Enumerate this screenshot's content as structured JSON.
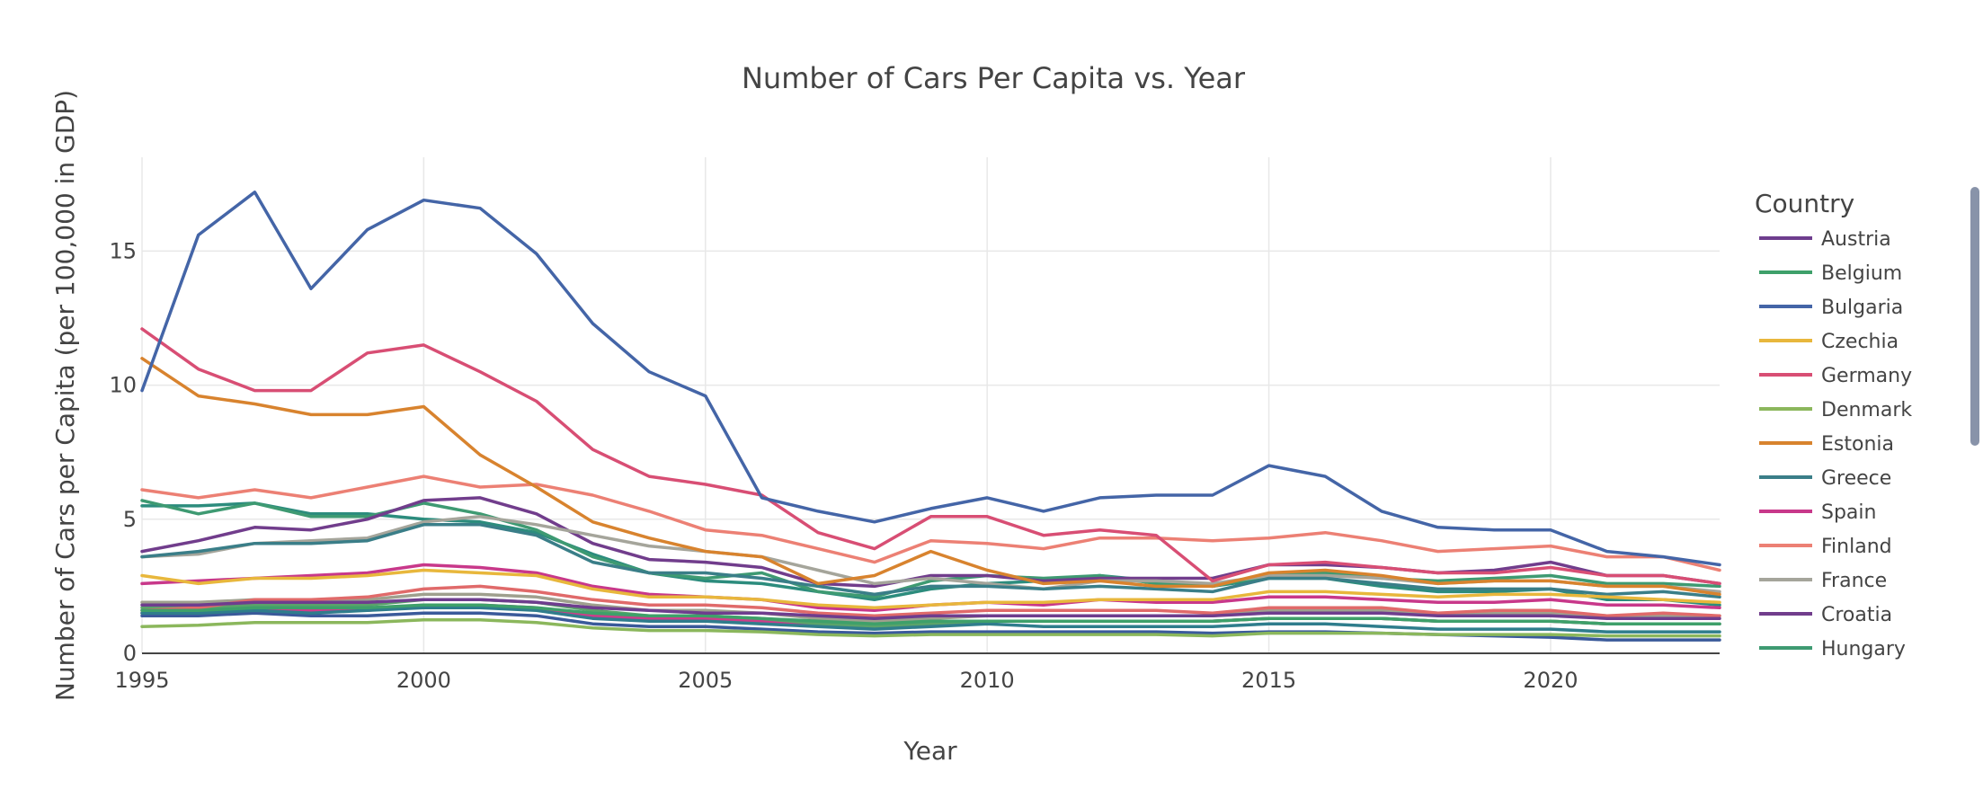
{
  "chart_data": {
    "type": "line",
    "title": "Number of Cars Per Capita vs. Year",
    "xlabel": "Year",
    "ylabel": "Number of Cars per Capita (per 100,000 in GDP)",
    "xlim": [
      1995,
      2023
    ],
    "ylim": [
      0,
      18.5
    ],
    "x_ticks": [
      1995,
      2000,
      2005,
      2010,
      2015,
      2020
    ],
    "y_ticks": [
      0,
      5,
      10,
      15
    ],
    "grid": true,
    "legend_title": "Country",
    "legend_position": "right",
    "x": [
      1995,
      1996,
      1997,
      1998,
      1999,
      2000,
      2001,
      2002,
      2003,
      2004,
      2005,
      2006,
      2007,
      2008,
      2009,
      2010,
      2011,
      2012,
      2013,
      2014,
      2015,
      2016,
      2017,
      2018,
      2019,
      2020,
      2021,
      2022,
      2023
    ],
    "series": [
      {
        "name": "Austria",
        "color": "#6e3d8e",
        "values": [
          1.8,
          1.8,
          1.9,
          1.9,
          1.9,
          2.0,
          2.0,
          1.9,
          1.7,
          1.6,
          1.5,
          1.5,
          1.4,
          1.3,
          1.4,
          1.4,
          1.4,
          1.4,
          1.4,
          1.4,
          1.5,
          1.5,
          1.5,
          1.4,
          1.4,
          1.4,
          1.3,
          1.3,
          1.3
        ]
      },
      {
        "name": "Belgium",
        "color": "#3ea06a",
        "values": [
          1.6,
          1.6,
          1.7,
          1.7,
          1.7,
          1.8,
          1.8,
          1.7,
          1.5,
          1.4,
          1.4,
          1.3,
          1.2,
          1.1,
          1.2,
          1.2,
          1.2,
          1.2,
          1.2,
          1.2,
          1.3,
          1.3,
          1.3,
          1.2,
          1.2,
          1.2,
          1.1,
          1.1,
          1.1
        ]
      },
      {
        "name": "Bulgaria",
        "color": "#4465a7",
        "values": [
          9.8,
          15.6,
          17.2,
          13.6,
          15.8,
          16.9,
          16.6,
          14.9,
          12.3,
          10.5,
          9.6,
          5.8,
          5.3,
          4.9,
          5.4,
          5.8,
          5.3,
          5.8,
          5.9,
          5.9,
          7.0,
          6.6,
          5.3,
          4.7,
          4.6,
          4.6,
          3.8,
          3.6,
          3.3
        ]
      },
      {
        "name": "Czechia",
        "color": "#e8b73c",
        "values": [
          2.9,
          2.6,
          2.8,
          2.8,
          2.9,
          3.1,
          3.0,
          2.9,
          2.4,
          2.1,
          2.1,
          2.0,
          1.8,
          1.7,
          1.8,
          1.9,
          1.9,
          2.0,
          2.0,
          2.0,
          2.3,
          2.3,
          2.2,
          2.1,
          2.2,
          2.2,
          2.1,
          2.0,
          1.9
        ]
      },
      {
        "name": "Germany",
        "color": "#d84e74",
        "values": [
          12.1,
          10.6,
          9.8,
          9.8,
          11.2,
          11.5,
          10.5,
          9.4,
          7.6,
          6.6,
          6.3,
          5.9,
          4.5,
          3.9,
          5.1,
          5.1,
          4.4,
          4.6,
          4.4,
          2.7,
          3.3,
          3.4,
          3.2,
          3.0,
          3.0,
          3.2,
          2.9,
          2.9,
          2.6
        ]
      },
      {
        "name": "Denmark",
        "color": "#8bb75c",
        "values": [
          1.0,
          1.05,
          1.15,
          1.15,
          1.15,
          1.25,
          1.25,
          1.15,
          0.95,
          0.85,
          0.85,
          0.8,
          0.7,
          0.65,
          0.7,
          0.7,
          0.7,
          0.7,
          0.7,
          0.65,
          0.75,
          0.75,
          0.75,
          0.7,
          0.7,
          0.7,
          0.65,
          0.65,
          0.65
        ]
      },
      {
        "name": "Estonia",
        "color": "#d8832e",
        "values": [
          11.0,
          9.6,
          9.3,
          8.9,
          8.9,
          9.2,
          7.4,
          6.2,
          4.9,
          4.3,
          3.8,
          3.6,
          2.6,
          2.9,
          3.8,
          3.1,
          2.6,
          2.7,
          2.5,
          2.5,
          3.0,
          3.1,
          2.9,
          2.6,
          2.7,
          2.7,
          2.5,
          2.5,
          2.2
        ]
      },
      {
        "name": "Greece",
        "color": "#3a7e88",
        "values": [
          3.6,
          3.8,
          4.1,
          4.1,
          4.2,
          4.8,
          4.8,
          4.4,
          3.4,
          3.0,
          3.0,
          2.8,
          2.5,
          2.2,
          2.5,
          2.5,
          2.4,
          2.5,
          2.4,
          2.3,
          2.8,
          2.8,
          2.6,
          2.4,
          2.4,
          2.4,
          2.2,
          2.3,
          2.1
        ]
      },
      {
        "name": "Spain",
        "color": "#c8388a",
        "values": [
          2.6,
          2.7,
          2.8,
          2.9,
          3.0,
          3.3,
          3.2,
          3.0,
          2.5,
          2.2,
          2.1,
          2.0,
          1.7,
          1.6,
          1.8,
          1.9,
          1.8,
          2.0,
          1.9,
          1.9,
          2.1,
          2.1,
          2.0,
          1.9,
          1.9,
          2.0,
          1.8,
          1.8,
          1.7
        ]
      },
      {
        "name": "Finland",
        "color": "#ec8074",
        "values": [
          6.1,
          5.8,
          6.1,
          5.8,
          6.2,
          6.6,
          6.2,
          6.3,
          5.9,
          5.3,
          4.6,
          4.4,
          3.9,
          3.4,
          4.2,
          4.1,
          3.9,
          4.3,
          4.3,
          4.2,
          4.3,
          4.5,
          4.2,
          3.8,
          3.9,
          4.0,
          3.6,
          3.6,
          3.1
        ]
      },
      {
        "name": "France",
        "color": "#a5a59b",
        "values": [
          3.6,
          3.7,
          4.1,
          4.2,
          4.3,
          4.9,
          5.1,
          4.8,
          4.4,
          4.0,
          3.8,
          3.6,
          3.1,
          2.6,
          2.8,
          2.6,
          2.4,
          2.7,
          2.7,
          2.6,
          2.9,
          2.9,
          2.8,
          2.6,
          2.7,
          2.7,
          2.5,
          2.5,
          2.3
        ]
      },
      {
        "name": "Croatia",
        "color": "#713d8c",
        "values": [
          3.8,
          4.2,
          4.7,
          4.6,
          5.0,
          5.7,
          5.8,
          5.2,
          4.1,
          3.5,
          3.4,
          3.2,
          2.6,
          2.5,
          2.9,
          2.9,
          2.7,
          2.8,
          2.8,
          2.8,
          3.3,
          3.3,
          3.2,
          3.0,
          3.1,
          3.4,
          2.9,
          2.9,
          2.6
        ]
      },
      {
        "name": "Hungary",
        "color": "#3e9a72",
        "values": [
          5.7,
          5.2,
          5.6,
          5.1,
          5.1,
          5.6,
          5.2,
          4.6,
          3.6,
          3.0,
          2.8,
          3.0,
          2.3,
          2.1,
          2.7,
          2.9,
          2.8,
          2.9,
          2.6,
          2.5,
          2.9,
          3.0,
          2.8,
          2.7,
          2.8,
          2.9,
          2.6,
          2.6,
          2.5
        ]
      },
      {
        "name": "",
        "color": "#2c8c7d",
        "values": [
          5.5,
          5.5,
          5.6,
          5.2,
          5.2,
          5.0,
          4.9,
          4.5,
          3.7,
          3.0,
          2.7,
          2.6,
          2.3,
          2.0,
          2.4,
          2.6,
          2.7,
          2.9,
          2.7,
          2.5,
          2.8,
          2.8,
          2.5,
          2.3,
          2.3,
          2.4,
          2.0,
          2.0,
          1.8
        ]
      },
      {
        "name": "",
        "color": "#e06a6a",
        "values": [
          1.6,
          1.7,
          2.0,
          2.0,
          2.1,
          2.4,
          2.5,
          2.3,
          2.0,
          1.8,
          1.8,
          1.7,
          1.5,
          1.4,
          1.5,
          1.6,
          1.6,
          1.6,
          1.6,
          1.5,
          1.7,
          1.7,
          1.7,
          1.5,
          1.6,
          1.6,
          1.4,
          1.5,
          1.4
        ]
      },
      {
        "name": "",
        "color": "#2f7d8c",
        "values": [
          1.5,
          1.5,
          1.6,
          1.5,
          1.6,
          1.7,
          1.7,
          1.6,
          1.3,
          1.2,
          1.2,
          1.1,
          1.0,
          0.9,
          1.0,
          1.1,
          1.0,
          1.0,
          1.0,
          1.0,
          1.1,
          1.1,
          1.0,
          0.9,
          0.9,
          0.9,
          0.8,
          0.8,
          0.8
        ]
      },
      {
        "name": "",
        "color": "#3a5a9a",
        "values": [
          1.4,
          1.4,
          1.5,
          1.4,
          1.4,
          1.5,
          1.5,
          1.4,
          1.1,
          1.0,
          1.0,
          0.9,
          0.8,
          0.75,
          0.8,
          0.8,
          0.8,
          0.8,
          0.8,
          0.75,
          0.8,
          0.8,
          0.75,
          0.7,
          0.65,
          0.6,
          0.5,
          0.5,
          0.5
        ]
      },
      {
        "name": "",
        "color": "#9fa08e",
        "values": [
          1.9,
          1.9,
          2.0,
          2.0,
          2.0,
          2.2,
          2.2,
          2.1,
          1.8,
          1.6,
          1.6,
          1.5,
          1.3,
          1.2,
          1.3,
          1.4,
          1.4,
          1.4,
          1.4,
          1.4,
          1.6,
          1.6,
          1.6,
          1.5,
          1.5,
          1.5,
          1.4,
          1.4,
          1.4
        ]
      },
      {
        "name": "",
        "color": "#5aa36a",
        "values": [
          1.7,
          1.7,
          1.8,
          1.8,
          1.8,
          2.0,
          2.0,
          1.9,
          1.6,
          1.4,
          1.4,
          1.3,
          1.1,
          1.0,
          1.1,
          1.2,
          1.2,
          1.2,
          1.2,
          1.2,
          1.3,
          1.3,
          1.3,
          1.2,
          1.2,
          1.2,
          1.1,
          1.1,
          1.1
        ]
      },
      {
        "name": "",
        "color": "#cc3e8a",
        "values": [
          1.5,
          1.5,
          1.6,
          1.6,
          1.6,
          1.8,
          1.8,
          1.7,
          1.4,
          1.3,
          1.3,
          1.2,
          1.1,
          1.0,
          1.1,
          1.2,
          1.2,
          1.2,
          1.2,
          1.2,
          1.3,
          1.3,
          1.3,
          1.2,
          1.2,
          1.2,
          1.1,
          1.1,
          1.1
        ]
      }
    ]
  }
}
